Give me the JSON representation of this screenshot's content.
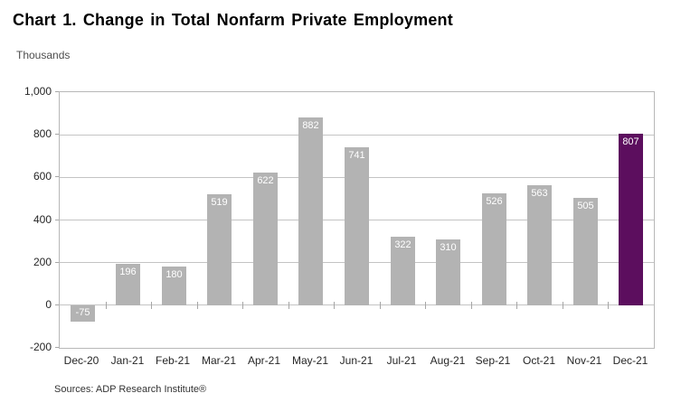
{
  "title": "Chart 1. Change in Total Nonfarm Private Employment",
  "units_label": "Thousands",
  "source_note": "Sources: ADP Research Institute®",
  "colors": {
    "bar_default": "#b3b3b3",
    "bar_highlight": "#5c0e5e",
    "bar_label_text": "#ffffff",
    "gridline": "#c4c4c4",
    "axis_text": "#262626"
  },
  "chart_data": {
    "type": "bar",
    "title": "Chart 1. Change in Total Nonfarm Private Employment",
    "xlabel": "",
    "ylabel": "Thousands",
    "categories": [
      "Dec-20",
      "Jan-21",
      "Feb-21",
      "Mar-21",
      "Apr-21",
      "May-21",
      "Jun-21",
      "Jul-21",
      "Aug-21",
      "Sep-21",
      "Oct-21",
      "Nov-21",
      "Dec-21"
    ],
    "values": [
      -75,
      196,
      180,
      519,
      622,
      882,
      741,
      322,
      310,
      526,
      563,
      505,
      807
    ],
    "highlight_index": 12,
    "ylim": [
      -200,
      1000
    ],
    "y_ticks": [
      1000,
      800,
      600,
      400,
      200,
      0,
      -200
    ],
    "y_tick_labels": [
      "1,000",
      "800",
      "600",
      "400",
      "200",
      "0",
      "-200"
    ],
    "grid": "horizontal",
    "legend": "none",
    "data_labels": "inside-end"
  }
}
